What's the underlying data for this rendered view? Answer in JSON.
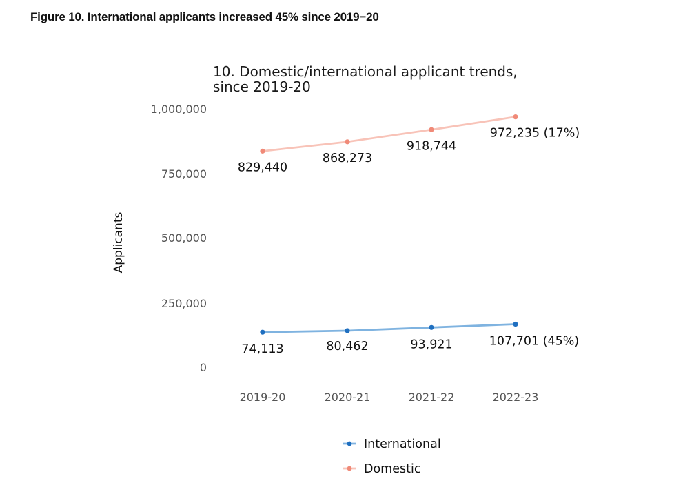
{
  "figure_caption": "Figure 10. International applicants increased 45% since 2019−20",
  "chart_data": {
    "type": "line",
    "title_lines": [
      "10. Domestic/international applicant trends,",
      "since 2019-20"
    ],
    "xlabel": "",
    "ylabel": "Applicants",
    "categories": [
      "2019-20",
      "2020-21",
      "2021-22",
      "2022-23"
    ],
    "yticks": [
      0,
      250000,
      500000,
      750000,
      1000000
    ],
    "ytick_labels": [
      "0",
      "250,000",
      "500,000",
      "750,000",
      "1,000,000"
    ],
    "ylim": [
      0,
      1000000
    ],
    "grid": false,
    "legend_position": "bottom",
    "series": [
      {
        "name": "International",
        "color": "#1f6fc0",
        "line_color": "#7fb3e0",
        "values": [
          74113,
          80462,
          93921,
          107701
        ],
        "labels": [
          "74,113",
          "80,462",
          "93,921",
          "107,701 (45%)"
        ]
      },
      {
        "name": "Domestic",
        "color": "#f08a78",
        "line_color": "#f8c3b8",
        "values": [
          829440,
          868273,
          918744,
          972235
        ],
        "labels": [
          "829,440",
          "868,273",
          "918,744",
          "972,235 (17%)"
        ]
      }
    ]
  }
}
